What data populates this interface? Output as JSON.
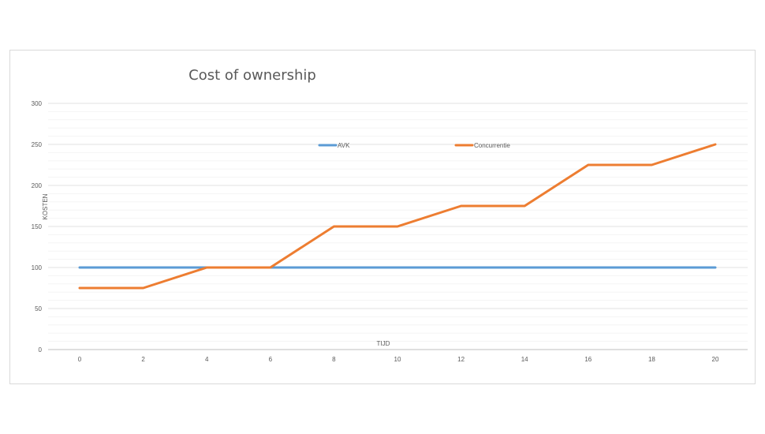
{
  "chart_data": {
    "type": "line",
    "title": "Cost of ownership",
    "xlabel": "TIJD",
    "ylabel": "KOSTEN",
    "x": [
      0,
      2,
      4,
      6,
      8,
      10,
      12,
      14,
      16,
      18,
      20
    ],
    "x_tick_labels": [
      "0",
      "2",
      "4",
      "6",
      "8",
      "10",
      "12",
      "14",
      "16",
      "18",
      "20"
    ],
    "y_tick_labels": [
      "0",
      "50",
      "100",
      "150",
      "200",
      "250",
      "300"
    ],
    "xlim": [
      0,
      20
    ],
    "ylim": [
      0,
      300
    ],
    "y_major_step": 50,
    "y_minor_step": 10,
    "grid": true,
    "legend": "top-center",
    "series": [
      {
        "name": "AVK",
        "color": "#5B9BD5",
        "values": [
          100,
          100,
          100,
          100,
          100,
          100,
          100,
          100,
          100,
          100,
          100
        ]
      },
      {
        "name": "Concurrentie",
        "color": "#ED7D31",
        "values": [
          75,
          75,
          100,
          100,
          150,
          150,
          175,
          175,
          225,
          225,
          250
        ]
      }
    ]
  }
}
